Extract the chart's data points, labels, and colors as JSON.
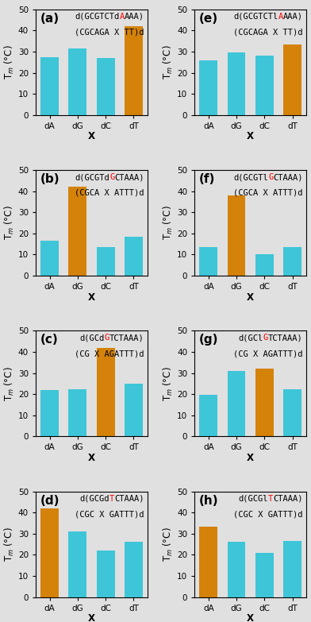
{
  "panels": [
    {
      "label": "a",
      "title_line1_parts": [
        [
          "d(GCGTCTd",
          "black"
        ],
        [
          "A",
          "red"
        ],
        [
          "AAA)",
          "black"
        ]
      ],
      "title_line2": "(CGCAGA X TT)d",
      "categories": [
        "dA",
        "dG",
        "dC",
        "dT"
      ],
      "values": [
        27.5,
        31.5,
        27.0,
        42.0
      ],
      "match_idx": 3,
      "ylim": [
        0,
        50
      ]
    },
    {
      "label": "e",
      "title_line1_parts": [
        [
          "d(GCGTCTl",
          "black"
        ],
        [
          "A",
          "red"
        ],
        [
          "AAA)",
          "black"
        ]
      ],
      "title_line2": "(CGCAGA X TT)d",
      "categories": [
        "dA",
        "dG",
        "dC",
        "dT"
      ],
      "values": [
        26.0,
        29.5,
        28.0,
        33.5
      ],
      "match_idx": 3,
      "ylim": [
        0,
        50
      ]
    },
    {
      "label": "b",
      "title_line1_parts": [
        [
          "d(GCGTd",
          "black"
        ],
        [
          "G",
          "red"
        ],
        [
          "CTAAA)",
          "black"
        ]
      ],
      "title_line2": "(CGCA X ATTT)d",
      "categories": [
        "dA",
        "dG",
        "dC",
        "dT"
      ],
      "values": [
        16.5,
        42.0,
        13.5,
        18.5
      ],
      "match_idx": 1,
      "ylim": [
        0,
        50
      ]
    },
    {
      "label": "f",
      "title_line1_parts": [
        [
          "d(GCGTl",
          "black"
        ],
        [
          "G",
          "red"
        ],
        [
          "CTAAA)",
          "black"
        ]
      ],
      "title_line2": "(CGCA X ATTT)d",
      "categories": [
        "dA",
        "dG",
        "dC",
        "dT"
      ],
      "values": [
        13.5,
        38.0,
        10.0,
        13.5
      ],
      "match_idx": 1,
      "ylim": [
        0,
        50
      ]
    },
    {
      "label": "c",
      "title_line1_parts": [
        [
          "d(GCd",
          "black"
        ],
        [
          "G",
          "red"
        ],
        [
          "TCTAAA)",
          "black"
        ]
      ],
      "title_line2": "(CG X AGATTT)d",
      "categories": [
        "dA",
        "dG",
        "dC",
        "dT"
      ],
      "values": [
        22.0,
        22.5,
        42.0,
        25.0
      ],
      "match_idx": 2,
      "ylim": [
        0,
        50
      ]
    },
    {
      "label": "g",
      "title_line1_parts": [
        [
          "d(GCl",
          "black"
        ],
        [
          "G",
          "red"
        ],
        [
          "TCTAAA)",
          "black"
        ]
      ],
      "title_line2": "(CG X AGATTT)d",
      "categories": [
        "dA",
        "dG",
        "dC",
        "dT"
      ],
      "values": [
        19.5,
        31.0,
        32.0,
        22.5
      ],
      "match_idx": 2,
      "ylim": [
        0,
        50
      ]
    },
    {
      "label": "d",
      "title_line1_parts": [
        [
          "d(GCGd",
          "black"
        ],
        [
          "T",
          "red"
        ],
        [
          "CTAAA)",
          "black"
        ]
      ],
      "title_line2": "(CGC X GATTT)d",
      "categories": [
        "dA",
        "dG",
        "dC",
        "dT"
      ],
      "values": [
        42.0,
        31.0,
        22.0,
        26.0
      ],
      "match_idx": 0,
      "ylim": [
        0,
        50
      ]
    },
    {
      "label": "h",
      "title_line1_parts": [
        [
          "d(GCGl",
          "black"
        ],
        [
          "T",
          "red"
        ],
        [
          "CTAAA)",
          "black"
        ]
      ],
      "title_line2": "(CGC X GATTT)d",
      "categories": [
        "dA",
        "dG",
        "dC",
        "dT"
      ],
      "values": [
        33.5,
        26.0,
        21.0,
        26.5
      ],
      "match_idx": 0,
      "ylim": [
        0,
        50
      ]
    }
  ],
  "bar_color_match": "#D4820A",
  "bar_color_mismatch": "#3EC5D8",
  "bg_color": "#E0E0E0",
  "title_fontsize": 7.5,
  "tick_fontsize": 7.5,
  "axlabel_fontsize": 8.5,
  "panel_label_fontsize": 11
}
